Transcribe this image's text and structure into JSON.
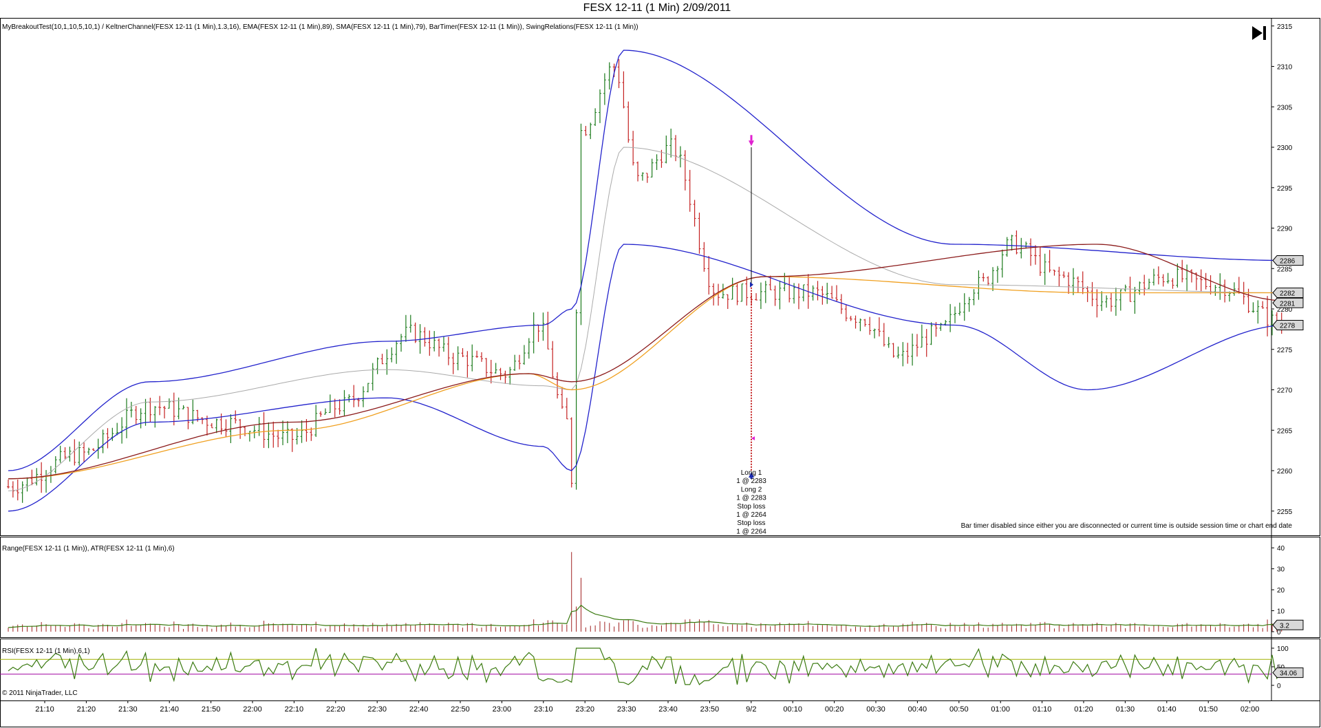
{
  "title": "FESX 12-11 (1 Min)  2/09/2011",
  "copyright": "© 2011 NinjaTrader, LLC",
  "toolbar": {
    "end_icon": "skip-to-end-icon"
  },
  "panels": {
    "price": {
      "label": "MyBreakoutTest(10,1,10,5,10,1) / KeltnerChannel(FESX 12-11 (1 Min),1.3,16), EMA(FESX 12-11 (1 Min),89), SMA(FESX 12-11 (1 Min),79), BarTimer(FESX 12-11 (1 Min)), SwingRelations(FESX 12-11 (1 Min))",
      "y_ticks": [
        2255,
        2260,
        2265,
        2270,
        2275,
        2280,
        2285,
        2290,
        2295,
        2300,
        2305,
        2310,
        2315
      ],
      "badges": [
        "2286",
        "2282",
        "2281",
        "2278"
      ],
      "notice": "Bar timer disabled since either you are disconnected or current time is outside session time or chart end date",
      "trade_labels": [
        "Long 1",
        "1 @ 2283",
        "Long 2",
        "1 @ 2283",
        "Stop loss",
        "1 @ 2264",
        "Stop loss",
        "1 @ 2264"
      ]
    },
    "range": {
      "label": "Range(FESX 12-11 (1 Min)), ATR(FESX 12-11 (1 Min),6)",
      "y_ticks": [
        0,
        10,
        20,
        30,
        40
      ],
      "badge": "3.2"
    },
    "rsi": {
      "label": "RSI(FESX 12-11 (1 Min),6,1)",
      "y_ticks": [
        0,
        50,
        100
      ],
      "badge": "34.06"
    }
  },
  "x_ticks": [
    "21:10",
    "21:20",
    "21:30",
    "21:40",
    "21:50",
    "22:00",
    "22:10",
    "22:20",
    "22:30",
    "22:40",
    "22:50",
    "23:00",
    "23:10",
    "23:20",
    "23:30",
    "23:40",
    "23:50",
    "9/2",
    "00:10",
    "00:20",
    "00:30",
    "00:40",
    "00:50",
    "01:00",
    "01:10",
    "01:20",
    "01:30",
    "01:40",
    "01:50",
    "02:00"
  ],
  "colors": {
    "up_bar": "#1a7a1a",
    "down_bar": "#c42020",
    "keltner": "#2222cc",
    "keltner_mid": "#aaaaaa",
    "ema": "#8b1a1a",
    "sma": "#f0a020",
    "rsi": "#3a7a10",
    "rsi_upper": "#a0b000",
    "rsi_lower": "#a000a0",
    "entry_arrow": "#1a2ab0",
    "exit_arrow": "#e020d0"
  },
  "chart_data": {
    "type": "candlestick",
    "instrument": "FESX 12-11 (1 Min)",
    "x_range": [
      "21:01",
      "02:08"
    ],
    "price_ylim": [
      2252,
      2316
    ],
    "key_prices": {
      "open_2100": 2258,
      "pre_drop_high": 2278,
      "low_2359": 2259,
      "spike_high_0007": 2312,
      "end_0208": 2278
    },
    "keltner_upper_anchor": [
      [
        0,
        2260
      ],
      [
        30,
        2271
      ],
      [
        80,
        2276
      ],
      [
        113,
        2278
      ],
      [
        119,
        2280
      ],
      [
        130,
        2312
      ],
      [
        200,
        2288
      ],
      [
        270,
        2286
      ]
    ],
    "keltner_lower_anchor": [
      [
        0,
        2255
      ],
      [
        30,
        2266
      ],
      [
        80,
        2269
      ],
      [
        113,
        2263
      ],
      [
        119,
        2260
      ],
      [
        130,
        2288
      ],
      [
        200,
        2278
      ],
      [
        228,
        2270
      ],
      [
        270,
        2278
      ]
    ],
    "ema_anchor": [
      [
        0,
        2259
      ],
      [
        60,
        2266
      ],
      [
        110,
        2272
      ],
      [
        119,
        2271
      ],
      [
        160,
        2284
      ],
      [
        230,
        2288
      ],
      [
        270,
        2281
      ]
    ],
    "sma_anchor": [
      [
        0,
        2259
      ],
      [
        60,
        2265
      ],
      [
        110,
        2272
      ],
      [
        119,
        2270
      ],
      [
        160,
        2284
      ],
      [
        230,
        2282
      ],
      [
        270,
        2282
      ]
    ],
    "range_spike": 38,
    "rsi_levels": {
      "upper": 70,
      "lower": 30
    }
  }
}
